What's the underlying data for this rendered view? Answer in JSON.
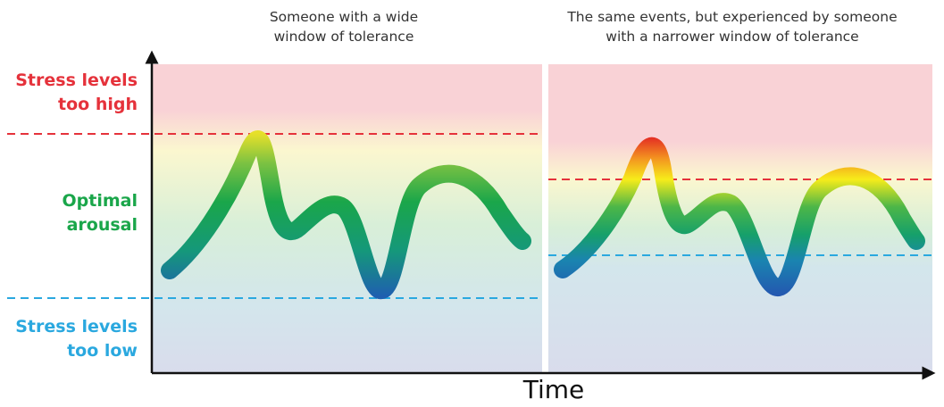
{
  "panels": [
    {
      "title_line1": "Someone with a wide",
      "title_line2": "window of tolerance"
    },
    {
      "title_line1": "The same events, but experienced by someone",
      "title_line2": "with a narrower window of tolerance"
    }
  ],
  "zones": {
    "high": {
      "line1": "Stress levels",
      "line2": "too high",
      "color": "#e5323b"
    },
    "optimal": {
      "line1": "Optimal",
      "line2": "arousal",
      "color": "#1aa64a"
    },
    "low": {
      "line1": "Stress levels",
      "line2": "too low",
      "color": "#2aa8df"
    }
  },
  "x_axis_label": "Time",
  "colors": {
    "high_zone": "#f9d2d6",
    "optimal_zone": "#d8efd8",
    "low_zone": "#d9dcec",
    "high_threshold_line": "#e5323b",
    "low_threshold_line": "#2aa8df",
    "axis": "#111111"
  }
}
